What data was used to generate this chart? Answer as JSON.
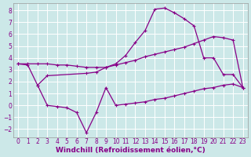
{
  "background_color": "#cce8e8",
  "grid_color": "#ffffff",
  "line_color": "#880088",
  "xlabel": "Windchill (Refroidissement éolien,°C)",
  "xlabel_fontsize": 6.5,
  "xlabel_color": "#880088",
  "ytick_labels": [
    "-2",
    "-1",
    "0",
    "1",
    "2",
    "3",
    "4",
    "5",
    "6",
    "7",
    "8"
  ],
  "yticks": [
    -2,
    -1,
    0,
    1,
    2,
    3,
    4,
    5,
    6,
    7,
    8
  ],
  "xticks": [
    0,
    1,
    2,
    3,
    4,
    5,
    6,
    7,
    8,
    9,
    10,
    11,
    12,
    13,
    14,
    15,
    16,
    17,
    18,
    19,
    20,
    21,
    22,
    23
  ],
  "ylim": [
    -2.7,
    8.6
  ],
  "xlim": [
    -0.5,
    23.5
  ],
  "line1_x": [
    0,
    1,
    2,
    3,
    4,
    5,
    6,
    7,
    8,
    9,
    10,
    11,
    12,
    13,
    14,
    15,
    16,
    17,
    18,
    19,
    20,
    21,
    22,
    23
  ],
  "line1_y": [
    3.5,
    3.5,
    3.5,
    3.5,
    3.4,
    3.4,
    3.3,
    3.2,
    3.2,
    3.2,
    3.4,
    3.6,
    3.8,
    4.1,
    4.3,
    4.5,
    4.7,
    4.9,
    5.2,
    5.5,
    5.8,
    5.7,
    5.5,
    1.5
  ],
  "line2_x": [
    0,
    1,
    2,
    3,
    4,
    5,
    6,
    7,
    8,
    9,
    10,
    11,
    12,
    13,
    14,
    15,
    16,
    17,
    18,
    19,
    20,
    21,
    22,
    23
  ],
  "line2_y": [
    3.5,
    3.4,
    1.7,
    0.0,
    -0.1,
    -0.2,
    -0.6,
    -2.3,
    -0.6,
    1.5,
    0.0,
    0.1,
    0.2,
    0.3,
    0.5,
    0.6,
    0.8,
    1.0,
    1.2,
    1.4,
    1.5,
    1.7,
    1.8,
    1.5
  ],
  "line3_x": [
    2,
    3,
    7,
    8,
    9,
    10,
    11,
    12,
    13,
    14,
    15,
    16,
    17,
    18,
    19,
    20,
    21,
    22,
    23
  ],
  "line3_y": [
    1.7,
    2.5,
    2.7,
    2.8,
    3.2,
    3.5,
    4.2,
    5.3,
    6.3,
    8.1,
    8.2,
    7.8,
    7.3,
    6.7,
    4.0,
    4.0,
    2.6,
    2.6,
    1.5
  ],
  "marker": "+",
  "markersize": 3.5,
  "linewidth": 0.9
}
